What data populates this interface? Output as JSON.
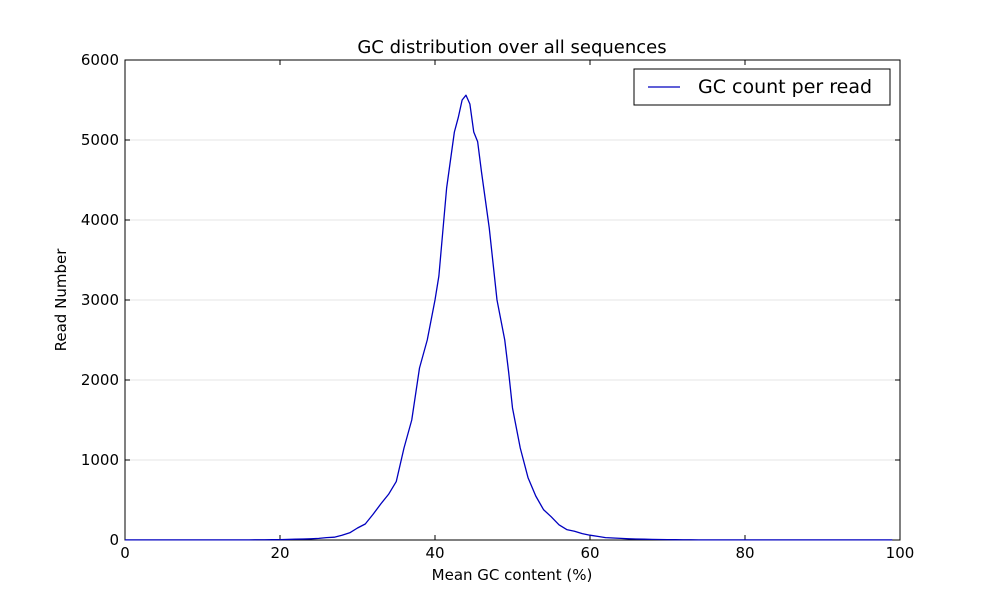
{
  "chart_data": {
    "type": "line",
    "title": "GC distribution over all sequences",
    "xlabel": "Mean GC content (%)",
    "ylabel": "Read Number",
    "xlim": [
      0,
      100
    ],
    "ylim": [
      0,
      6000
    ],
    "xticks": [
      0,
      20,
      40,
      60,
      80,
      100
    ],
    "yticks": [
      0,
      1000,
      2000,
      3000,
      4000,
      5000,
      6000
    ],
    "grid": "horizontal",
    "legend_position": "top-right",
    "series": [
      {
        "name": "GC count per read",
        "color": "#0000bf",
        "x": [
          0,
          1,
          2,
          3,
          4,
          5,
          6,
          7,
          8,
          9,
          10,
          11,
          12,
          13,
          14,
          15,
          16,
          17,
          18,
          19,
          20,
          21,
          22,
          23,
          24,
          25,
          26,
          27,
          28,
          29,
          30,
          31,
          32,
          33,
          34,
          35,
          36,
          37,
          38,
          39,
          40,
          40.5,
          41,
          41.5,
          42,
          42.5,
          43,
          43.5,
          44,
          44.5,
          45,
          45.5,
          46,
          46.5,
          47,
          47.5,
          48,
          48.5,
          49,
          49.5,
          50,
          51,
          52,
          53,
          54,
          55,
          56,
          57,
          58,
          59,
          60,
          61,
          62,
          63,
          64,
          65,
          66,
          67,
          68,
          69,
          70,
          71,
          72,
          73,
          74,
          75,
          76,
          77,
          78,
          79,
          80,
          81,
          82,
          83,
          84,
          85,
          86,
          87,
          88,
          89,
          90,
          91,
          92,
          93,
          94,
          95,
          96,
          97,
          98,
          99
        ],
        "y": [
          2,
          2,
          2,
          2,
          2,
          2,
          2,
          2,
          2,
          2,
          2,
          2,
          2,
          2,
          2,
          2,
          2,
          3,
          3,
          4,
          5,
          7,
          10,
          12,
          15,
          20,
          30,
          35,
          60,
          90,
          150,
          200,
          320,
          450,
          570,
          730,
          1150,
          1500,
          2150,
          2500,
          3000,
          3300,
          3850,
          4400,
          4750,
          5100,
          5280,
          5500,
          5560,
          5450,
          5100,
          4980,
          4600,
          4250,
          3900,
          3450,
          3000,
          2750,
          2500,
          2100,
          1650,
          1150,
          780,
          550,
          380,
          290,
          190,
          130,
          110,
          80,
          60,
          45,
          30,
          25,
          20,
          15,
          12,
          10,
          8,
          6,
          5,
          4,
          3,
          3,
          2,
          2,
          2,
          2,
          2,
          2,
          2,
          2,
          2,
          2,
          2,
          2,
          2,
          2,
          2,
          2,
          2,
          2,
          2,
          2,
          2,
          2,
          2,
          2,
          2,
          2
        ]
      }
    ]
  }
}
